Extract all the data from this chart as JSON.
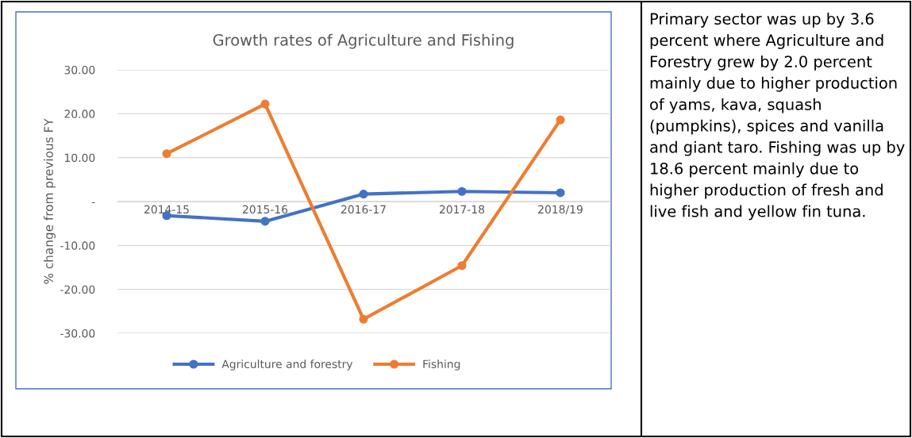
{
  "chart_data": {
    "type": "line",
    "title": "Growth rates of Agriculture and Fishing",
    "ylabel": "% change from previous FY",
    "categories": [
      "2014-15",
      "2015-16",
      "2016-17",
      "2017-18",
      "2018/19"
    ],
    "series": [
      {
        "name": "Agriculture and forestry",
        "color": "#4472c4",
        "values": [
          -3.2,
          -4.5,
          1.7,
          2.3,
          2.0
        ]
      },
      {
        "name": "Fishing",
        "color": "#ed7d31",
        "values": [
          10.9,
          22.2,
          -26.8,
          -14.6,
          18.6
        ]
      }
    ],
    "ylim": [
      -30,
      30
    ],
    "yticks": [
      {
        "value": -30,
        "label": "-30.00"
      },
      {
        "value": -20,
        "label": "-20.00"
      },
      {
        "value": -10,
        "label": "-10.00"
      },
      {
        "value": 0,
        "label": "-"
      },
      {
        "value": 10,
        "label": "10.00"
      },
      {
        "value": 20,
        "label": "20.00"
      },
      {
        "value": 30,
        "label": "30.00"
      }
    ],
    "grid": "y",
    "legend": "bottom",
    "marker": "circle",
    "line_style": "solid",
    "annotations": [
      "Primary sector was up by 3.6 percent where Agriculture and Forestry grew by 2.0 percent mainly due to higher production of yams, kava, squash (pumpkins), spices and vanilla and giant taro. Fishing was up by 18.6 percent mainly due to higher production of fresh and live fish and yellow fin tuna."
    ]
  }
}
